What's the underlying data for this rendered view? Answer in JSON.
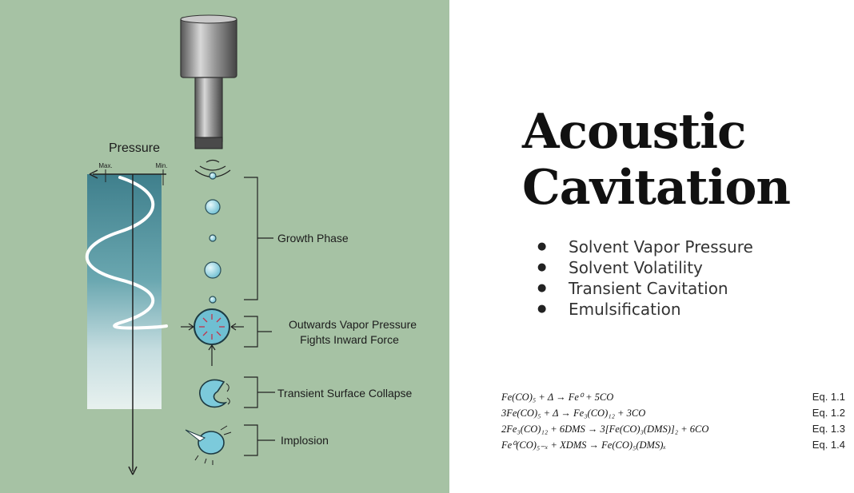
{
  "figure": {
    "pressure_label": "Pressure",
    "max_label": "Max.",
    "min_label": "Min.",
    "phases": [
      {
        "lines": [
          "Growth Phase"
        ]
      },
      {
        "lines": [
          "Outwards Vapor Pressure",
          "Fights Inward Force"
        ]
      },
      {
        "lines": [
          "Transient Surface Collapse"
        ]
      },
      {
        "lines": [
          "Implosion"
        ]
      }
    ]
  },
  "slide": {
    "title_lines": [
      "Acoustic",
      "Cavitation"
    ],
    "bullets": [
      "Solvent Vapor Pressure",
      "Solvent Volatility",
      "Transient Cavitation",
      "Emulsification"
    ]
  },
  "equations": [
    {
      "text": "Fe(CO)₅ + Δ → Fe⁰ + 5CO",
      "label": "Eq. 1.1"
    },
    {
      "text": "3Fe(CO)₅ + Δ → Fe₃(CO)₁₂ + 3CO",
      "label": "Eq. 1.2"
    },
    {
      "text": "2Fe₃(CO)₁₂ + 6DMS → 3[Fe(CO)₃(DMS)]₂ + 6CO",
      "label": "Eq. 1.3"
    },
    {
      "text": "Fe⁰(CO)₅₋ₓ + XDMS → Fe(CO)₅(DMS)ₓ",
      "label": "Eq. 1.4"
    }
  ],
  "colors": {
    "panel_background": "#a6c2a4",
    "bubble": "#8fd0e0",
    "pressure_gradient": "#3f7f8c"
  }
}
